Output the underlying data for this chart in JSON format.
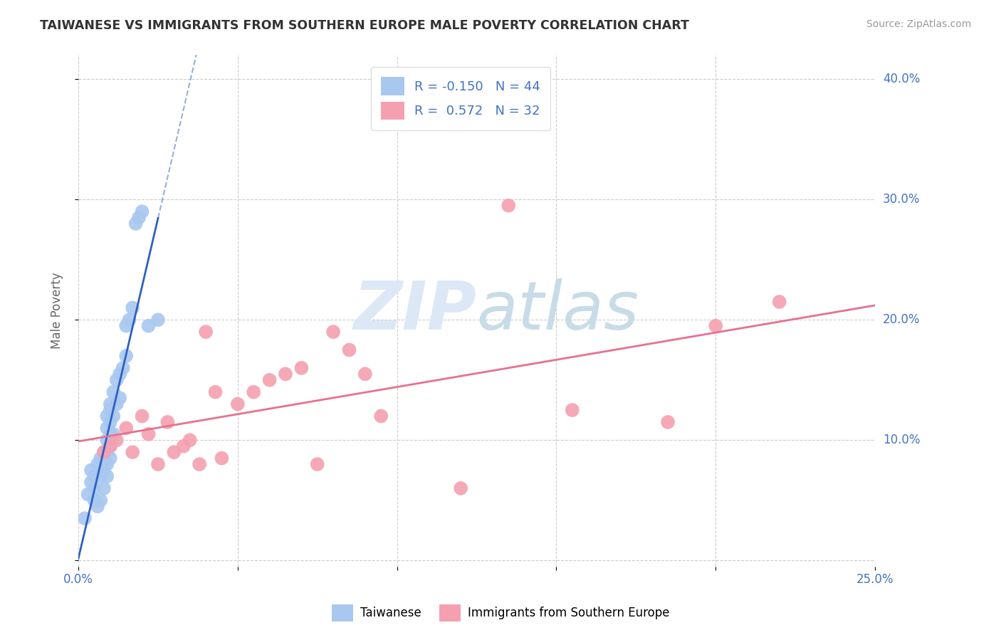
{
  "title": "TAIWANESE VS IMMIGRANTS FROM SOUTHERN EUROPE MALE POVERTY CORRELATION CHART",
  "source": "Source: ZipAtlas.com",
  "ylabel": "Male Poverty",
  "xlim": [
    0.0,
    0.25
  ],
  "ylim": [
    -0.005,
    0.42
  ],
  "taiwanese_color": "#a8c8f0",
  "southern_europe_color": "#f4a0b0",
  "taiwanese_line_color": "#3060c0",
  "southern_europe_line_color": "#e87090",
  "R_taiwanese": -0.15,
  "N_taiwanese": 44,
  "R_southern_europe": 0.572,
  "N_southern_europe": 32,
  "legend_label_1": "Taiwanese",
  "legend_label_2": "Immigrants from Southern Europe",
  "taiwanese_x": [
    0.002,
    0.003,
    0.004,
    0.004,
    0.005,
    0.005,
    0.005,
    0.006,
    0.006,
    0.007,
    0.007,
    0.007,
    0.008,
    0.008,
    0.008,
    0.009,
    0.009,
    0.009,
    0.009,
    0.009,
    0.009,
    0.01,
    0.01,
    0.01,
    0.01,
    0.01,
    0.01,
    0.011,
    0.011,
    0.011,
    0.012,
    0.012,
    0.013,
    0.013,
    0.014,
    0.015,
    0.015,
    0.016,
    0.017,
    0.018,
    0.019,
    0.02,
    0.022,
    0.025
  ],
  "taiwanese_y": [
    0.035,
    0.055,
    0.065,
    0.075,
    0.07,
    0.06,
    0.05,
    0.08,
    0.045,
    0.085,
    0.07,
    0.05,
    0.09,
    0.075,
    0.06,
    0.12,
    0.11,
    0.1,
    0.09,
    0.08,
    0.07,
    0.13,
    0.125,
    0.115,
    0.105,
    0.095,
    0.085,
    0.14,
    0.12,
    0.105,
    0.15,
    0.13,
    0.155,
    0.135,
    0.16,
    0.17,
    0.195,
    0.2,
    0.21,
    0.28,
    0.285,
    0.29,
    0.195,
    0.2
  ],
  "southern_europe_x": [
    0.008,
    0.01,
    0.012,
    0.015,
    0.017,
    0.02,
    0.022,
    0.025,
    0.028,
    0.03,
    0.033,
    0.035,
    0.038,
    0.04,
    0.043,
    0.045,
    0.05,
    0.055,
    0.06,
    0.065,
    0.07,
    0.075,
    0.08,
    0.085,
    0.09,
    0.095,
    0.12,
    0.135,
    0.155,
    0.185,
    0.2,
    0.22
  ],
  "southern_europe_y": [
    0.09,
    0.095,
    0.1,
    0.11,
    0.09,
    0.12,
    0.105,
    0.08,
    0.115,
    0.09,
    0.095,
    0.1,
    0.08,
    0.19,
    0.14,
    0.085,
    0.13,
    0.14,
    0.15,
    0.155,
    0.16,
    0.08,
    0.19,
    0.175,
    0.155,
    0.12,
    0.06,
    0.295,
    0.125,
    0.115,
    0.195,
    0.215
  ],
  "background_color": "#ffffff",
  "grid_color": "#cccccc",
  "axis_color": "#4472c4",
  "watermark_color": "#dce8f5"
}
